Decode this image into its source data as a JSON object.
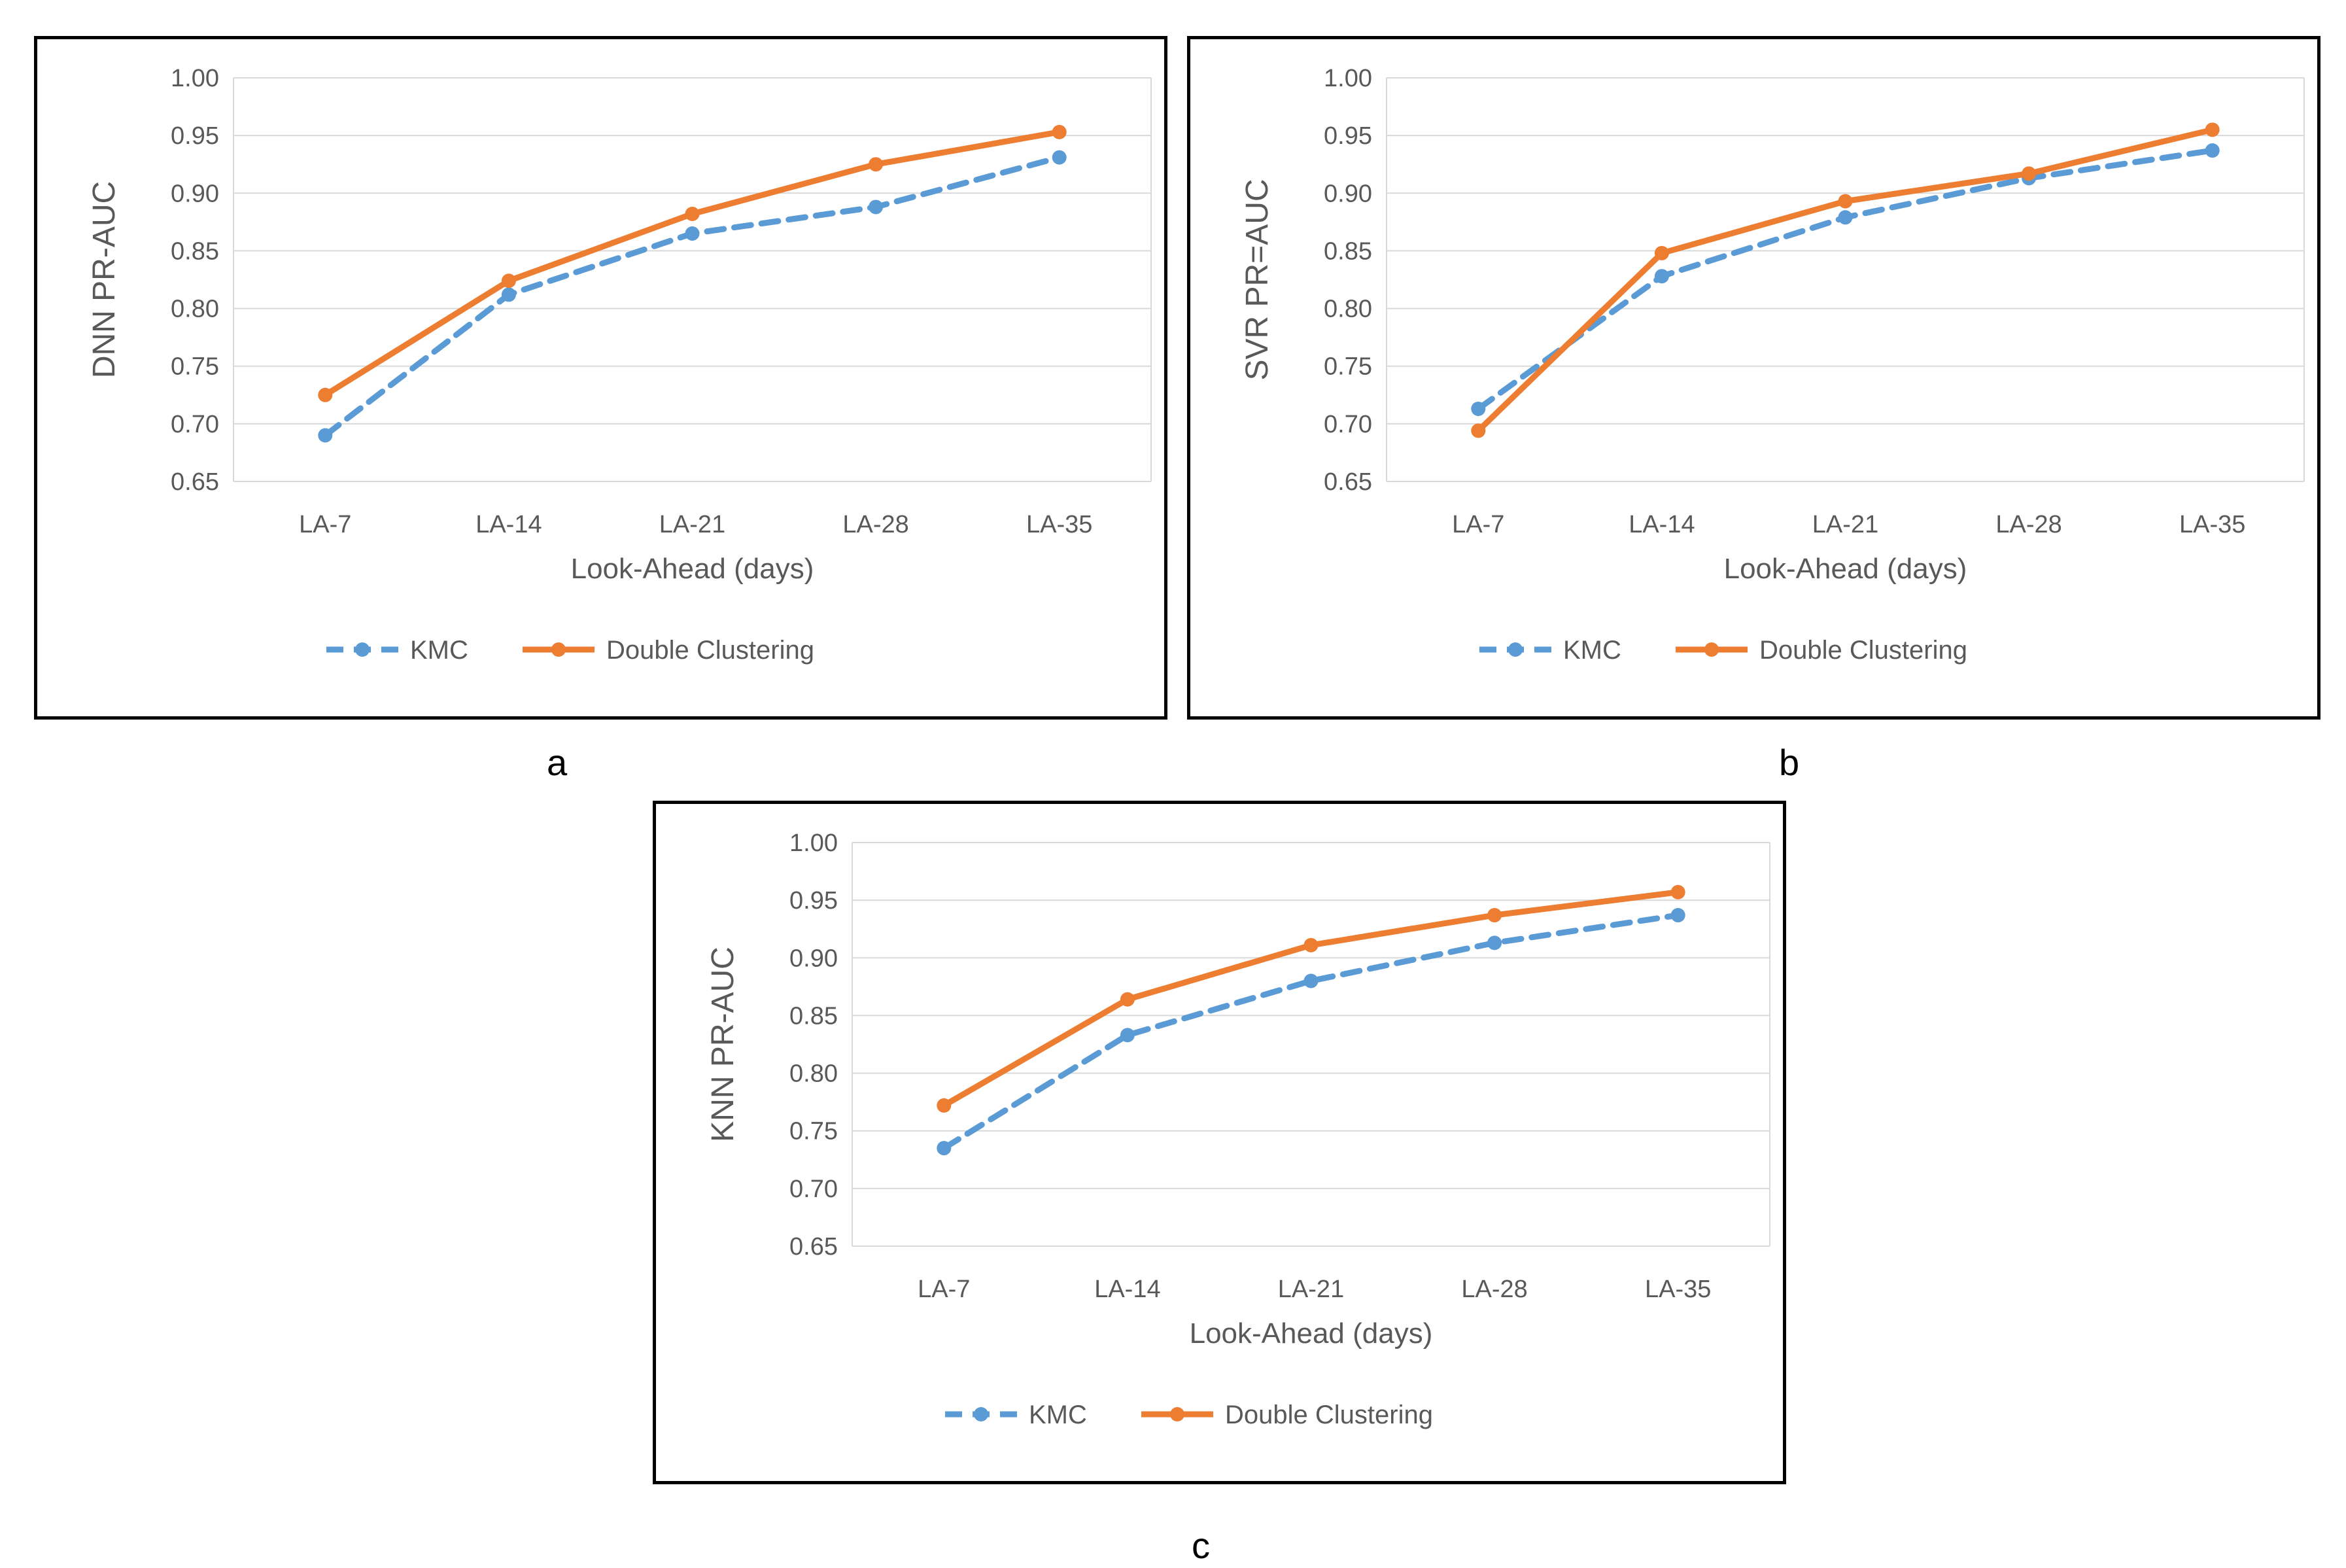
{
  "colors": {
    "kmc": "#5B9BD5",
    "double_clustering": "#ED7D31",
    "grid": "#D9D9D9",
    "axis_text": "#595959"
  },
  "labels": {
    "a": "a",
    "b": "b",
    "c": "c"
  },
  "chart_data": [
    {
      "type": "line",
      "panel": "a",
      "title": "",
      "xlabel": "Look-Ahead (days)",
      "ylabel": "DNN PR-AUC",
      "categories": [
        "LA-7",
        "LA-14",
        "LA-21",
        "LA-28",
        "LA-35"
      ],
      "ylim": [
        0.65,
        1.0
      ],
      "yticks": [
        "0.65",
        "0.70",
        "0.75",
        "0.80",
        "0.85",
        "0.90",
        "0.95",
        "1.00"
      ],
      "grid": true,
      "legend_position": "bottom",
      "series": [
        {
          "name": "KMC",
          "style": "dashed",
          "values": [
            0.69,
            0.812,
            0.865,
            0.888,
            0.931
          ]
        },
        {
          "name": "Double Clustering",
          "style": "solid",
          "values": [
            0.725,
            0.824,
            0.882,
            0.925,
            0.953
          ]
        }
      ]
    },
    {
      "type": "line",
      "panel": "b",
      "title": "",
      "xlabel": "Look-Ahead (days)",
      "ylabel": "SVR PR=AUC",
      "categories": [
        "LA-7",
        "LA-14",
        "LA-21",
        "LA-28",
        "LA-35"
      ],
      "ylim": [
        0.65,
        1.0
      ],
      "yticks": [
        "0.65",
        "0.70",
        "0.75",
        "0.80",
        "0.85",
        "0.90",
        "0.95",
        "1.00"
      ],
      "grid": true,
      "legend_position": "bottom",
      "series": [
        {
          "name": "KMC",
          "style": "dashed",
          "values": [
            0.713,
            0.828,
            0.879,
            0.913,
            0.937
          ]
        },
        {
          "name": "Double Clustering",
          "style": "solid",
          "values": [
            0.694,
            0.848,
            0.893,
            0.917,
            0.955
          ]
        }
      ]
    },
    {
      "type": "line",
      "panel": "c",
      "title": "",
      "xlabel": "Look-Ahead (days)",
      "ylabel": "KNN PR-AUC",
      "categories": [
        "LA-7",
        "LA-14",
        "LA-21",
        "LA-28",
        "LA-35"
      ],
      "ylim": [
        0.65,
        1.0
      ],
      "yticks": [
        "0.65",
        "0.70",
        "0.75",
        "0.80",
        "0.85",
        "0.90",
        "0.95",
        "1.00"
      ],
      "grid": true,
      "legend_position": "bottom",
      "series": [
        {
          "name": "KMC",
          "style": "dashed",
          "values": [
            0.735,
            0.833,
            0.88,
            0.913,
            0.937
          ]
        },
        {
          "name": "Double Clustering",
          "style": "solid",
          "values": [
            0.772,
            0.864,
            0.911,
            0.937,
            0.957
          ]
        }
      ]
    }
  ]
}
